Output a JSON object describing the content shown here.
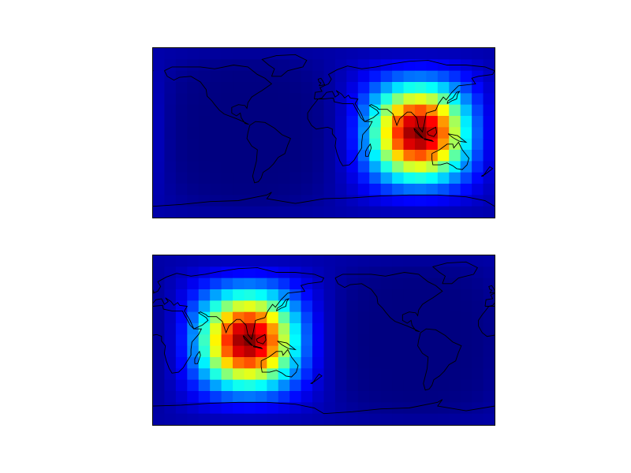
{
  "figure": {
    "colormap": "jet",
    "grid": {
      "cols": 30,
      "rows": 15
    },
    "panels": [
      {
        "id": "top",
        "projection": "cylindrical",
        "central_longitude": 0,
        "field": {
          "type": "gaussian-blob",
          "center_lon": 100,
          "center_lat": 0,
          "value_range": [
            0,
            1
          ]
        }
      },
      {
        "id": "bottom",
        "projection": "cylindrical",
        "central_longitude": 180,
        "field": {
          "type": "gaussian-blob",
          "center_lon": 100,
          "center_lat": 0,
          "value_range": [
            0,
            1
          ]
        }
      }
    ],
    "coastline_color": "#000000",
    "border_color": "#000000"
  }
}
